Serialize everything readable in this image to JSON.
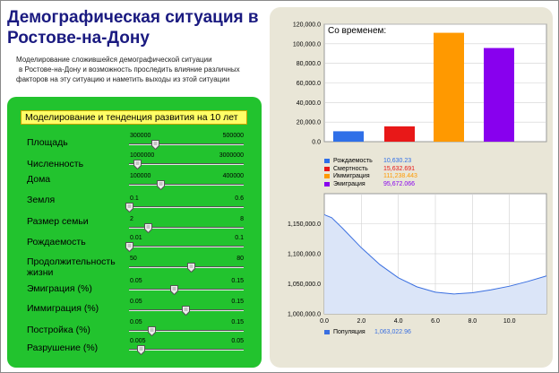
{
  "header": {
    "title_line1": "Демографическая ситуация в",
    "title_line2": "Ростове-на-Дону",
    "desc_line1": "Моделирование сложившейся демографической ситуации",
    "desc_line2": "в Ростове-на-Дону и возможность проследить влияние различных",
    "desc_line3": "факторов на эту ситуацию и наметить выходы из этой ситуации"
  },
  "panel": {
    "title": "Моделирование и тенденция развития на 10 лет",
    "params": [
      {
        "label": "Площадь",
        "min": "300000",
        "max": "500000",
        "value_fraction": 0.23
      },
      {
        "label": "Численность",
        "min": "1000000",
        "max": "3000000",
        "value_fraction": 0.07
      },
      {
        "label": "Дома",
        "min": "100000",
        "max": "400000",
        "value_fraction": 0.28
      },
      {
        "label": "Земля",
        "min": "0.1",
        "max": "0.6",
        "value_fraction": 0.0
      },
      {
        "label": "Размер семьи",
        "min": "2",
        "max": "8",
        "value_fraction": 0.17
      },
      {
        "label": "Рождаемость",
        "min": "0.01",
        "max": "0.1",
        "value_fraction": 0.0
      },
      {
        "label": "Продолжительность\nжизни",
        "min": "50",
        "max": "80",
        "value_fraction": 0.55
      },
      {
        "label": "Эмиграция (%)",
        "min": "0.05",
        "max": "0.15",
        "value_fraction": 0.4
      },
      {
        "label": "Иммиграция (%)",
        "min": "0.05",
        "max": "0.15",
        "value_fraction": 0.5
      },
      {
        "label": "Постройка (%)",
        "min": "0.05",
        "max": "0.15",
        "value_fraction": 0.2
      },
      {
        "label": "Разрушение (%)",
        "min": "0.005",
        "max": "0.05",
        "value_fraction": 0.1
      }
    ]
  },
  "chart_data": [
    {
      "type": "bar",
      "title": "Со временем:",
      "categories": [
        "Рождаемость",
        "Смертность",
        "Иммиграция",
        "Эмиграция"
      ],
      "values": [
        10630.23,
        15632.691,
        111238.443,
        95672.066
      ],
      "value_labels": [
        "10,630.23",
        "15,632.691",
        "111,238.443",
        "95,672.066"
      ],
      "colors": [
        "#2f6fe8",
        "#e81818",
        "#ff9900",
        "#8800ee"
      ],
      "ylim": [
        0,
        120000
      ],
      "yticks": [
        "0.0",
        "20,000.0",
        "40,000.0",
        "60,000.0",
        "80,000.0",
        "100,000.0",
        "120,000.0"
      ],
      "legend": "bottom",
      "grid": true
    },
    {
      "type": "area",
      "series": [
        {
          "name": "Популяция",
          "value_label": "1,063,022.96",
          "color": "#3a6fe0",
          "x": [
            0,
            0.4,
            1,
            2,
            3,
            4,
            5,
            6,
            7,
            8,
            9,
            10,
            11,
            12
          ],
          "y": [
            1165000,
            1160000,
            1142000,
            1110000,
            1082000,
            1060000,
            1045000,
            1036000,
            1033000,
            1035000,
            1040000,
            1046000,
            1054000,
            1063000
          ]
        }
      ],
      "xlim": [
        0,
        12
      ],
      "xticks": [
        "0.0",
        "2.0",
        "4.0",
        "6.0",
        "8.0",
        "10.0"
      ],
      "ylim": [
        1000000,
        1200000
      ],
      "yticks": [
        "1,000,000.0",
        "1,050,000.0",
        "1,100,000.0",
        "1,150,000.0"
      ],
      "legend": "bottom",
      "grid": true
    }
  ]
}
